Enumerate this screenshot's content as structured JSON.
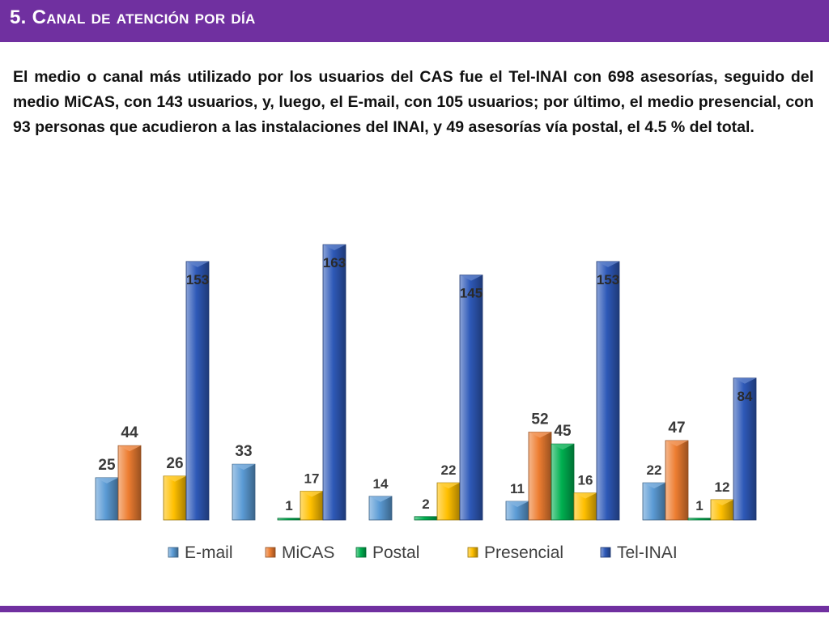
{
  "header": {
    "title": "5. Canal de atención por día"
  },
  "paragraph": "El medio o canal más utilizado por los usuarios del CAS fue el Tel-INAI con 698 asesorías, seguido del medio MiCAS, con 143 usuarios, y, luego, el E-mail, con 105 usuarios; por último, el medio presencial, con 93 personas que acudieron a las instalaciones del INAI, y 49 asesorías vía postal, el 4.5 % del total.",
  "colors": {
    "header": "#7030a0",
    "bottom_bar": "#7030a0"
  },
  "chart_data": {
    "type": "bar",
    "categories": [
      "",
      "",
      "",
      "",
      ""
    ],
    "grid": false,
    "legend_position": "bottom",
    "ylim": [
      0,
      175
    ],
    "series": [
      {
        "name": "E-mail",
        "color": "#5b9bd5",
        "values": [
          25,
          33,
          14,
          11,
          22
        ]
      },
      {
        "name": "MiCAS",
        "color": "#ed7d31",
        "values": [
          44,
          null,
          null,
          52,
          47
        ]
      },
      {
        "name": "Postal",
        "color": "#00b050",
        "values": [
          null,
          1,
          2,
          45,
          1
        ]
      },
      {
        "name": "Presencial",
        "color": "#ffc000",
        "values": [
          26,
          17,
          22,
          16,
          12
        ]
      },
      {
        "name": "Tel-INAI",
        "color": "#2e59b8",
        "values": [
          153,
          163,
          145,
          153,
          84
        ]
      }
    ]
  }
}
